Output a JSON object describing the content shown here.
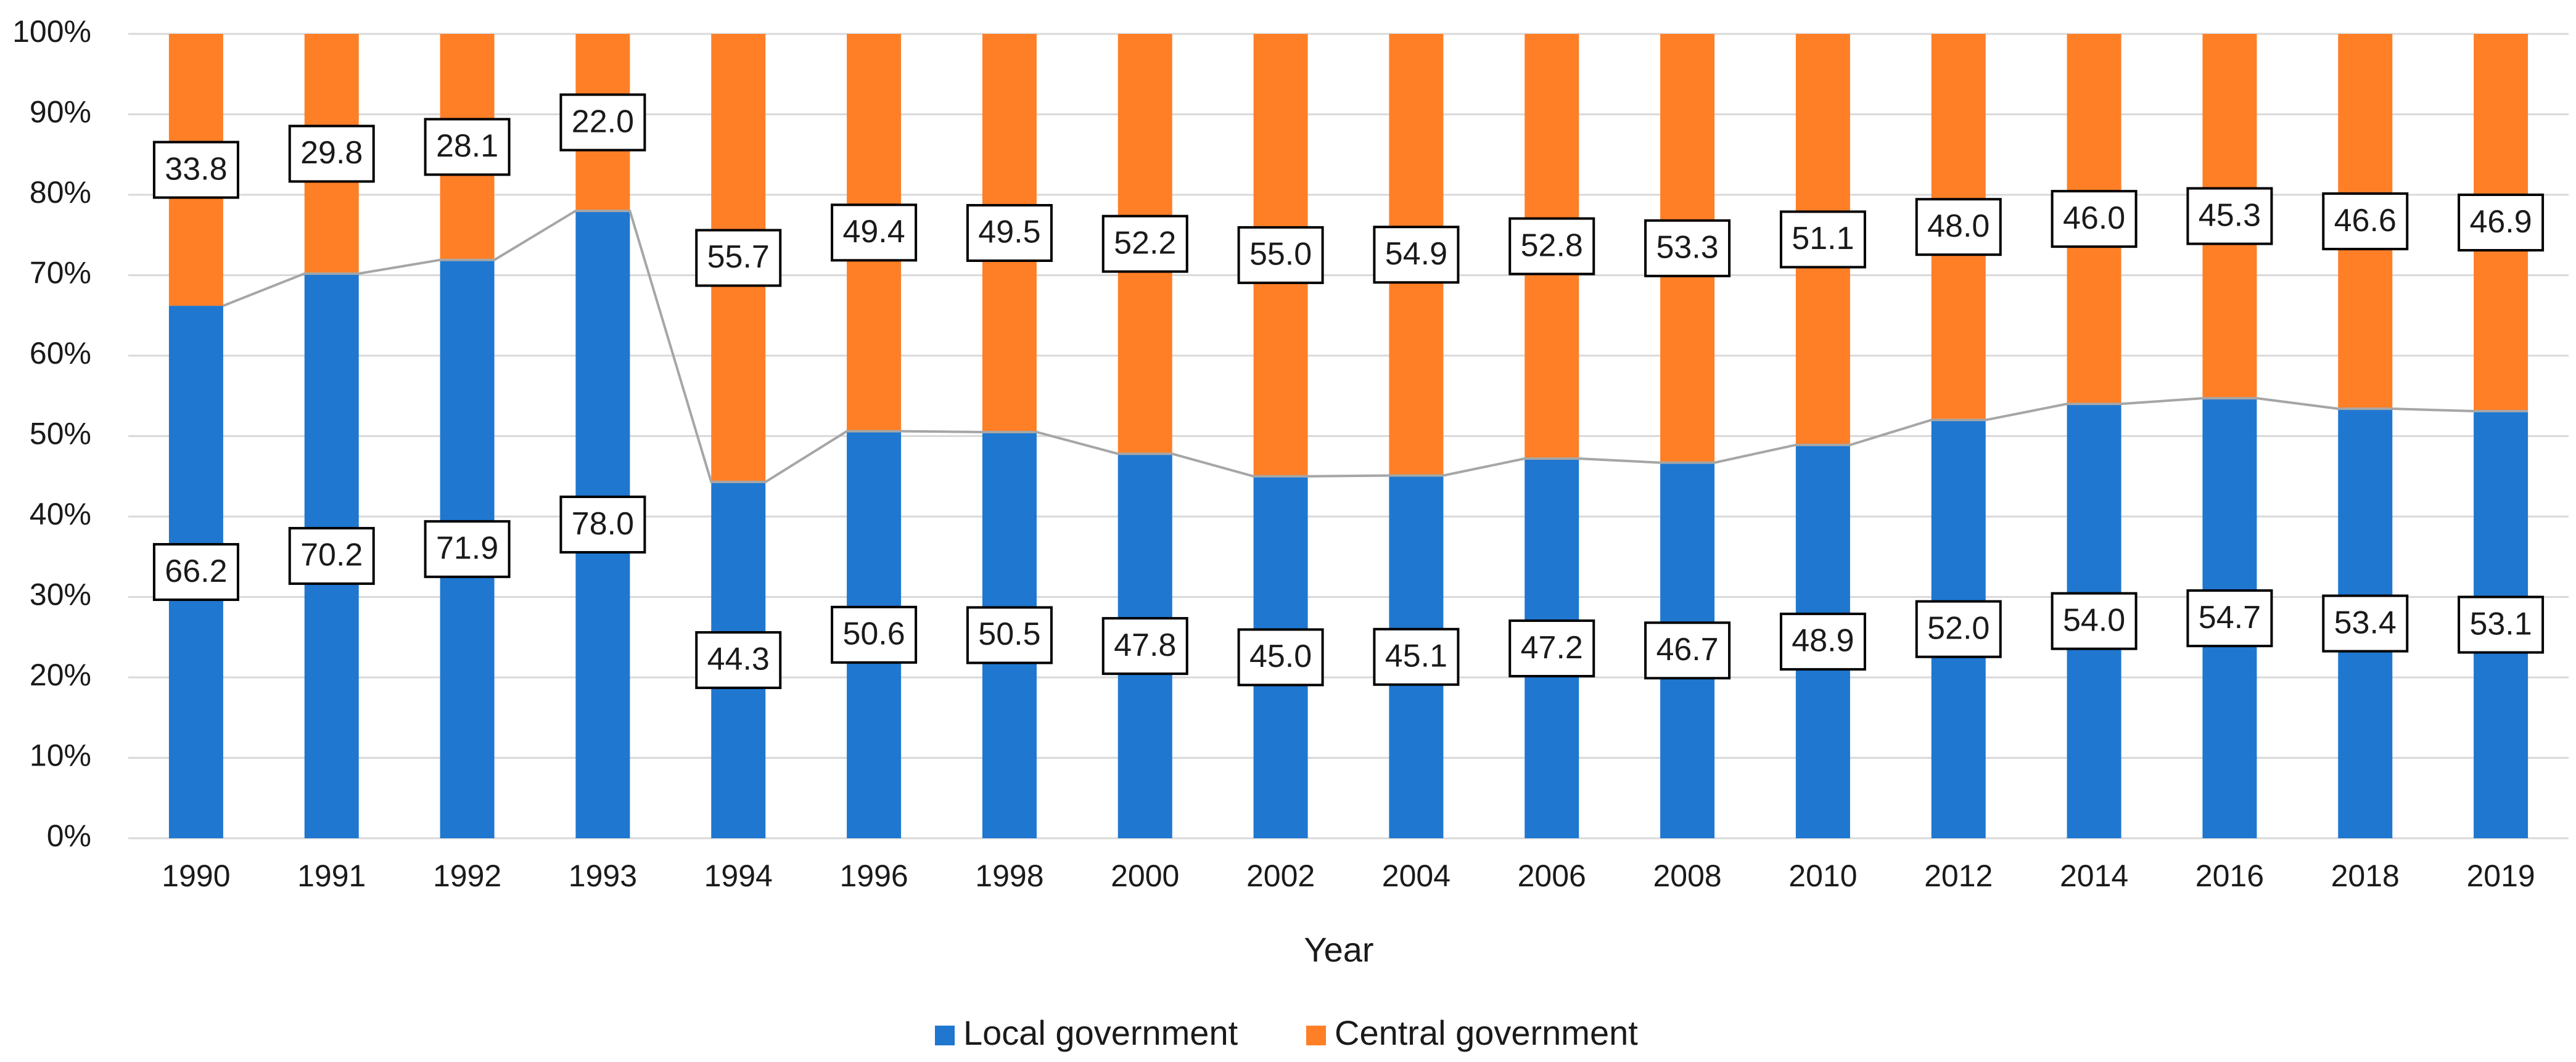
{
  "chart_data": {
    "type": "bar",
    "stacked": true,
    "title": "",
    "xlabel": "Year",
    "ylabel": "",
    "ylim": [
      0,
      100
    ],
    "y_ticks": [
      "0%",
      "10%",
      "20%",
      "30%",
      "40%",
      "50%",
      "60%",
      "70%",
      "80%",
      "90%",
      "100%"
    ],
    "grid": true,
    "legend_position": "bottom",
    "categories": [
      "1990",
      "1991",
      "1992",
      "1993",
      "1994",
      "1996",
      "1998",
      "2000",
      "2002",
      "2004",
      "2006",
      "2008",
      "2010",
      "2012",
      "2014",
      "2016",
      "2018",
      "2019"
    ],
    "series": [
      {
        "name": "Local government",
        "color": "#1f77d0",
        "values": [
          66.2,
          70.2,
          71.9,
          78.0,
          44.3,
          50.6,
          50.5,
          47.8,
          45.0,
          45.1,
          47.2,
          46.7,
          48.9,
          52.0,
          54.0,
          54.7,
          53.4,
          53.1
        ],
        "labels": [
          "66.2",
          "70.2",
          "71.9",
          "78.0",
          "44.3",
          "50.6",
          "50.5",
          "47.8",
          "45.0",
          "45.1",
          "47.2",
          "46.7",
          "48.9",
          "52.0",
          "54.0",
          "54.7",
          "53.4",
          "53.1"
        ]
      },
      {
        "name": "Central government",
        "color": "#ff7f27",
        "values": [
          33.8,
          29.8,
          28.1,
          22.0,
          55.7,
          49.4,
          49.5,
          52.2,
          55.0,
          54.9,
          52.8,
          53.3,
          51.1,
          48.0,
          46.0,
          45.3,
          46.6,
          46.9
        ],
        "labels": [
          "33.8",
          "29.8",
          "28.1",
          "22.0",
          "55.7",
          "49.4",
          "49.5",
          "52.2",
          "55.0",
          "54.9",
          "52.8",
          "53.3",
          "51.1",
          "48.0",
          "46.0",
          "45.3",
          "46.6",
          "46.9"
        ]
      }
    ],
    "connector_color": "#a6a6a6",
    "gridline_color": "#d9d9d9"
  }
}
